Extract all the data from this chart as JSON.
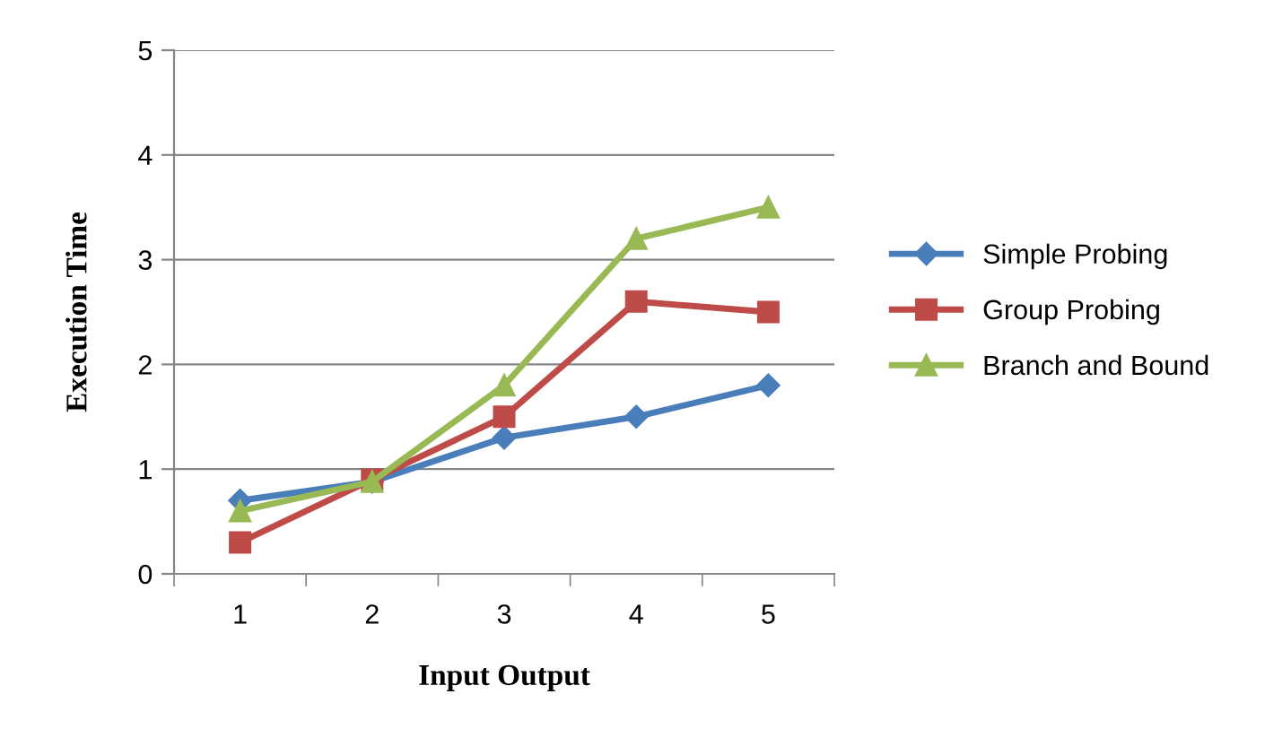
{
  "chart_data": {
    "type": "line",
    "xlabel": "Input Output",
    "ylabel": "Execution Time",
    "categories": [
      "1",
      "2",
      "3",
      "4",
      "5"
    ],
    "series": [
      {
        "name": "Simple Probing",
        "color": "#4a7ebb",
        "marker": "diamond",
        "values": [
          0.7,
          0.88,
          1.3,
          1.5,
          1.8
        ]
      },
      {
        "name": "Group Probing",
        "color": "#be4b48",
        "marker": "square",
        "values": [
          0.3,
          0.9,
          1.5,
          2.6,
          2.5
        ]
      },
      {
        "name": "Branch and Bound",
        "color": "#98b954",
        "marker": "triangle",
        "values": [
          0.6,
          0.88,
          1.8,
          3.2,
          3.5
        ]
      }
    ],
    "ylim": [
      0,
      5
    ],
    "yticks": [
      0,
      1,
      2,
      3,
      4,
      5
    ],
    "grid": "y",
    "legend": "right"
  }
}
